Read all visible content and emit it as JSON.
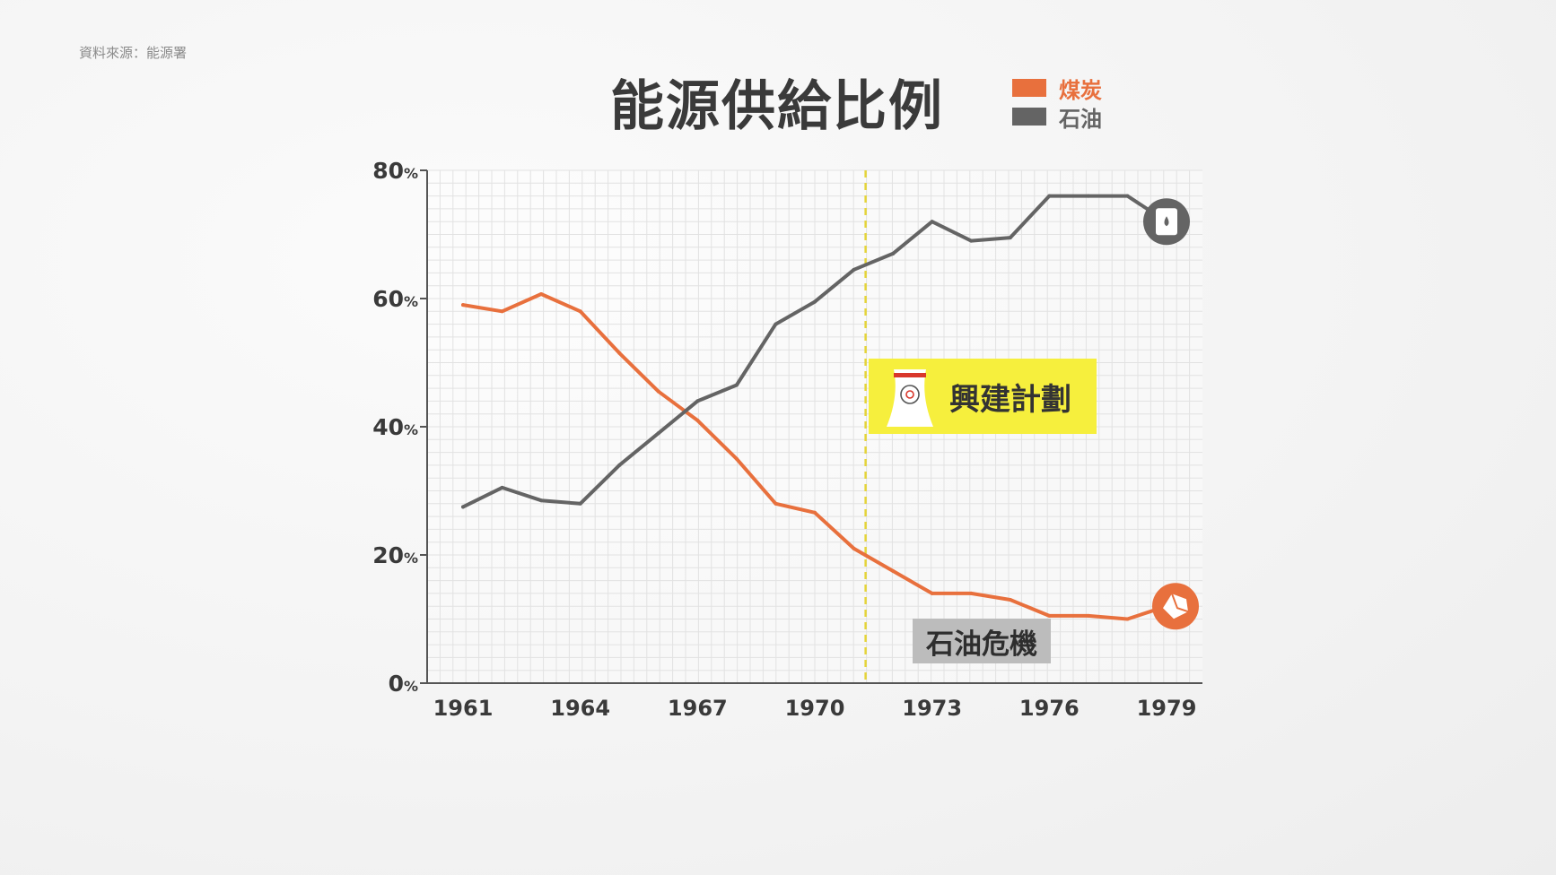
{
  "source_note": "資料來源：能源署",
  "colors": {
    "coal": "#e8703d",
    "oil": "#646464",
    "axis": "#555555",
    "grid": "#e2e2e2",
    "event_line": "#e5d43a",
    "callout_yellow": "#f6ef3d",
    "callout_grey": "#bcbcbc"
  },
  "annotations": {
    "construction_plan": "興建計劃",
    "oil_crisis": "石油危機",
    "construction_plan_icon": "cooling-tower-icon",
    "oil_marker_icon": "oil-drop-icon",
    "coal_marker_icon": "coal-rock-icon"
  },
  "chart_data": {
    "type": "line",
    "title": "能源供給比例",
    "xlabel": "",
    "ylabel": "",
    "x": [
      1961,
      1962,
      1963,
      1964,
      1965,
      1966,
      1967,
      1968,
      1969,
      1970,
      1971,
      1972,
      1973,
      1974,
      1975,
      1976,
      1977,
      1978,
      1979
    ],
    "xticks": [
      "1961",
      "1964",
      "1967",
      "1970",
      "1973",
      "1976",
      "1979"
    ],
    "yticks": [
      {
        "value": 0,
        "num": "0",
        "unit": "%"
      },
      {
        "value": 20,
        "num": "20",
        "unit": "%"
      },
      {
        "value": 40,
        "num": "40",
        "unit": "%"
      },
      {
        "value": 60,
        "num": "60",
        "unit": "%"
      },
      {
        "value": 80,
        "num": "80",
        "unit": "%"
      }
    ],
    "ylim": [
      0,
      80
    ],
    "xlim": [
      1961,
      1979
    ],
    "grid": true,
    "legend_position": "top-right",
    "event_year": 1971.3,
    "series": [
      {
        "name": "煤炭",
        "color": "#e8703d",
        "values": [
          59,
          58,
          60.7,
          58,
          51.5,
          45.5,
          41,
          35,
          28,
          26.6,
          21,
          17.5,
          14,
          14,
          13,
          10.5,
          10.5,
          10,
          12
        ]
      },
      {
        "name": "石油",
        "color": "#646464",
        "values": [
          27.5,
          30.5,
          28.5,
          28,
          34,
          39,
          44,
          46.5,
          56,
          59.5,
          64.5,
          67,
          72,
          69,
          69.5,
          76,
          76,
          76,
          72
        ]
      }
    ]
  }
}
